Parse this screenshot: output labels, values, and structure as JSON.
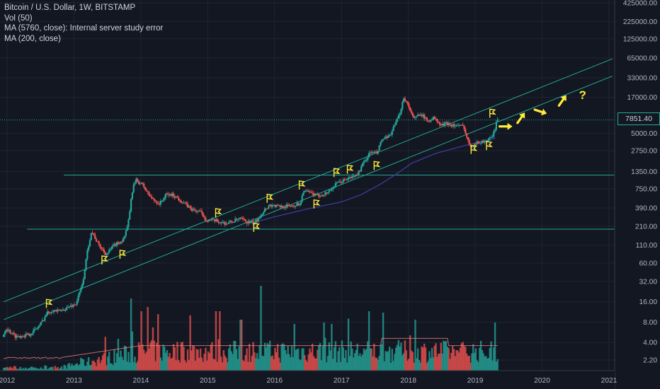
{
  "legend": {
    "title": "Bitcoin / U.S. Dollar, 1W, BITSTAMP",
    "vol": "Vol (50)",
    "ma1": "MA (5760, close): Internal server study error",
    "ma2": "MA (200, close)"
  },
  "last_price_label": "7851.40",
  "colors": {
    "background": "#131722",
    "up": "#26a69a",
    "down": "#ef5350",
    "trendline": "#22ab94",
    "ma200": "#3d3d99",
    "vol_ma": "#f08080",
    "annotation": "#ffeb3b"
  },
  "annotation_text": "?",
  "chart_data": {
    "type": "candlestick",
    "title": "Bitcoin / U.S. Dollar, 1W, BITSTAMP",
    "y_scale": "log",
    "x_ticks": [
      "2012",
      "2013",
      "2014",
      "2015",
      "2016",
      "2017",
      "2018",
      "2019",
      "2020",
      "2021"
    ],
    "y_ticks": [
      "425000.00",
      "225000.00",
      "125000.00",
      "65000.00",
      "33000.00",
      "17000.00",
      "7851.40",
      "5000.00",
      "2750.00",
      "1350.00",
      "750.00",
      "390.00",
      "210.00",
      "110.00",
      "60.00",
      "32.00",
      "16.00",
      "8.00",
      "4.00",
      "2.20"
    ],
    "y_tick_values": [
      425000,
      225000,
      125000,
      65000,
      33000,
      17000,
      7851.4,
      5000,
      2750,
      1350,
      750,
      390,
      210,
      110,
      60,
      32,
      16,
      8,
      4,
      2.2
    ],
    "price_path": [
      {
        "t": 2011.95,
        "close": 4.8
      },
      {
        "t": 2012.0,
        "close": 6.5
      },
      {
        "t": 2012.15,
        "close": 4.9
      },
      {
        "t": 2012.35,
        "close": 5.2
      },
      {
        "t": 2012.5,
        "close": 7.0
      },
      {
        "t": 2012.62,
        "close": 11.0
      },
      {
        "t": 2012.7,
        "close": 12.0
      },
      {
        "t": 2012.8,
        "close": 11.5
      },
      {
        "t": 2012.95,
        "close": 13.5
      },
      {
        "t": 2013.05,
        "close": 15.0
      },
      {
        "t": 2013.15,
        "close": 30.0
      },
      {
        "t": 2013.22,
        "close": 90.0
      },
      {
        "t": 2013.28,
        "close": 180.0
      },
      {
        "t": 2013.38,
        "close": 115.0
      },
      {
        "t": 2013.5,
        "close": 80.0
      },
      {
        "t": 2013.62,
        "close": 110.0
      },
      {
        "t": 2013.75,
        "close": 130.0
      },
      {
        "t": 2013.82,
        "close": 200.0
      },
      {
        "t": 2013.9,
        "close": 800.0
      },
      {
        "t": 2013.95,
        "close": 1000.0
      },
      {
        "t": 2014.05,
        "close": 850.0
      },
      {
        "t": 2014.12,
        "close": 650.0
      },
      {
        "t": 2014.2,
        "close": 520.0
      },
      {
        "t": 2014.3,
        "close": 450.0
      },
      {
        "t": 2014.4,
        "close": 620.0
      },
      {
        "t": 2014.5,
        "close": 610.0
      },
      {
        "t": 2014.6,
        "close": 520.0
      },
      {
        "t": 2014.7,
        "close": 430.0
      },
      {
        "t": 2014.8,
        "close": 360.0
      },
      {
        "t": 2014.9,
        "close": 350.0
      },
      {
        "t": 2015.0,
        "close": 260.0
      },
      {
        "t": 2015.15,
        "close": 250.0
      },
      {
        "t": 2015.3,
        "close": 230.0
      },
      {
        "t": 2015.5,
        "close": 270.0
      },
      {
        "t": 2015.62,
        "close": 240.0
      },
      {
        "t": 2015.72,
        "close": 235.0
      },
      {
        "t": 2015.8,
        "close": 300.0
      },
      {
        "t": 2015.88,
        "close": 380.0
      },
      {
        "t": 2015.95,
        "close": 430.0
      },
      {
        "t": 2016.1,
        "close": 410.0
      },
      {
        "t": 2016.25,
        "close": 420.0
      },
      {
        "t": 2016.4,
        "close": 450.0
      },
      {
        "t": 2016.45,
        "close": 700.0
      },
      {
        "t": 2016.55,
        "close": 650.0
      },
      {
        "t": 2016.65,
        "close": 590.0
      },
      {
        "t": 2016.8,
        "close": 650.0
      },
      {
        "t": 2016.95,
        "close": 900.0
      },
      {
        "t": 2017.05,
        "close": 1000.0
      },
      {
        "t": 2017.15,
        "close": 1100.0
      },
      {
        "t": 2017.25,
        "close": 1200.0
      },
      {
        "t": 2017.35,
        "close": 1800.0
      },
      {
        "t": 2017.45,
        "close": 2600.0
      },
      {
        "t": 2017.55,
        "close": 2500.0
      },
      {
        "t": 2017.62,
        "close": 4000.0
      },
      {
        "t": 2017.72,
        "close": 4300.0
      },
      {
        "t": 2017.8,
        "close": 6000.0
      },
      {
        "t": 2017.88,
        "close": 9000.0
      },
      {
        "t": 2017.95,
        "close": 17000.0
      },
      {
        "t": 2018.0,
        "close": 14000.0
      },
      {
        "t": 2018.05,
        "close": 11000.0
      },
      {
        "t": 2018.1,
        "close": 8000.0
      },
      {
        "t": 2018.2,
        "close": 10000.0
      },
      {
        "t": 2018.3,
        "close": 7500.0
      },
      {
        "t": 2018.4,
        "close": 8500.0
      },
      {
        "t": 2018.5,
        "close": 6500.0
      },
      {
        "t": 2018.6,
        "close": 7000.0
      },
      {
        "t": 2018.7,
        "close": 6500.0
      },
      {
        "t": 2018.85,
        "close": 6300.0
      },
      {
        "t": 2018.9,
        "close": 4000.0
      },
      {
        "t": 2018.95,
        "close": 3300.0
      },
      {
        "t": 2019.05,
        "close": 3600.0
      },
      {
        "t": 2019.15,
        "close": 3800.0
      },
      {
        "t": 2019.25,
        "close": 4100.0
      },
      {
        "t": 2019.3,
        "close": 5200.0
      },
      {
        "t": 2019.35,
        "close": 7851.4
      }
    ],
    "ma200_path": [
      {
        "t": 2015.7,
        "close": 240.0
      },
      {
        "t": 2016.0,
        "close": 290.0
      },
      {
        "t": 2016.5,
        "close": 380.0
      },
      {
        "t": 2017.0,
        "close": 480.0
      },
      {
        "t": 2017.3,
        "close": 620.0
      },
      {
        "t": 2017.6,
        "close": 900.0
      },
      {
        "t": 2017.85,
        "close": 1300.0
      },
      {
        "t": 2018.05,
        "close": 1800.0
      },
      {
        "t": 2018.4,
        "close": 2500.0
      },
      {
        "t": 2018.8,
        "close": 3200.0
      },
      {
        "t": 2019.1,
        "close": 3800.0
      },
      {
        "t": 2019.3,
        "close": 4200.0
      }
    ],
    "horizontal_levels": [
      1200,
      190,
      7851.4
    ],
    "channel_lines": [
      {
        "from": {
          "t": 2011.95,
          "price": 8.7
        },
        "to": {
          "t": 2021.05,
          "price": 35000
        }
      },
      {
        "from": {
          "t": 2011.95,
          "price": 16.0
        },
        "to": {
          "t": 2021.05,
          "price": 63000
        }
      }
    ],
    "annotations": {
      "flags": [
        {
          "t": 2012.62,
          "price": 15
        },
        {
          "t": 2013.45,
          "price": 66
        },
        {
          "t": 2013.72,
          "price": 80
        },
        {
          "t": 2015.15,
          "price": 330
        },
        {
          "t": 2015.72,
          "price": 200
        },
        {
          "t": 2015.92,
          "price": 540
        },
        {
          "t": 2016.4,
          "price": 850
        },
        {
          "t": 2016.62,
          "price": 445
        },
        {
          "t": 2016.92,
          "price": 1300
        },
        {
          "t": 2017.12,
          "price": 1450
        },
        {
          "t": 2017.52,
          "price": 1650
        },
        {
          "t": 2018.97,
          "price": 2850
        },
        {
          "t": 2019.2,
          "price": 3250
        },
        {
          "t": 2019.25,
          "price": 9800
        }
      ],
      "arrows": [
        {
          "t": 2019.45,
          "price": 6300,
          "dir": "right"
        },
        {
          "t": 2019.68,
          "price": 8300,
          "dir": "up-right"
        },
        {
          "t": 2019.97,
          "price": 10500,
          "dir": "right-down"
        },
        {
          "t": 2020.3,
          "price": 15000,
          "dir": "up-right"
        }
      ],
      "question": {
        "t": 2020.55,
        "price": 18500
      }
    },
    "volume": {
      "label": "Vol (50)",
      "y_scale": "relative",
      "spikes": [
        {
          "t": 2013.85,
          "level": 0.85
        },
        {
          "t": 2014.1,
          "level": 0.75
        },
        {
          "t": 2015.8,
          "level": 1.0
        },
        {
          "t": 2015.5,
          "level": 0.6
        },
        {
          "t": 2016.85,
          "level": 0.55
        },
        {
          "t": 2018.1,
          "level": 0.6
        }
      ]
    }
  }
}
